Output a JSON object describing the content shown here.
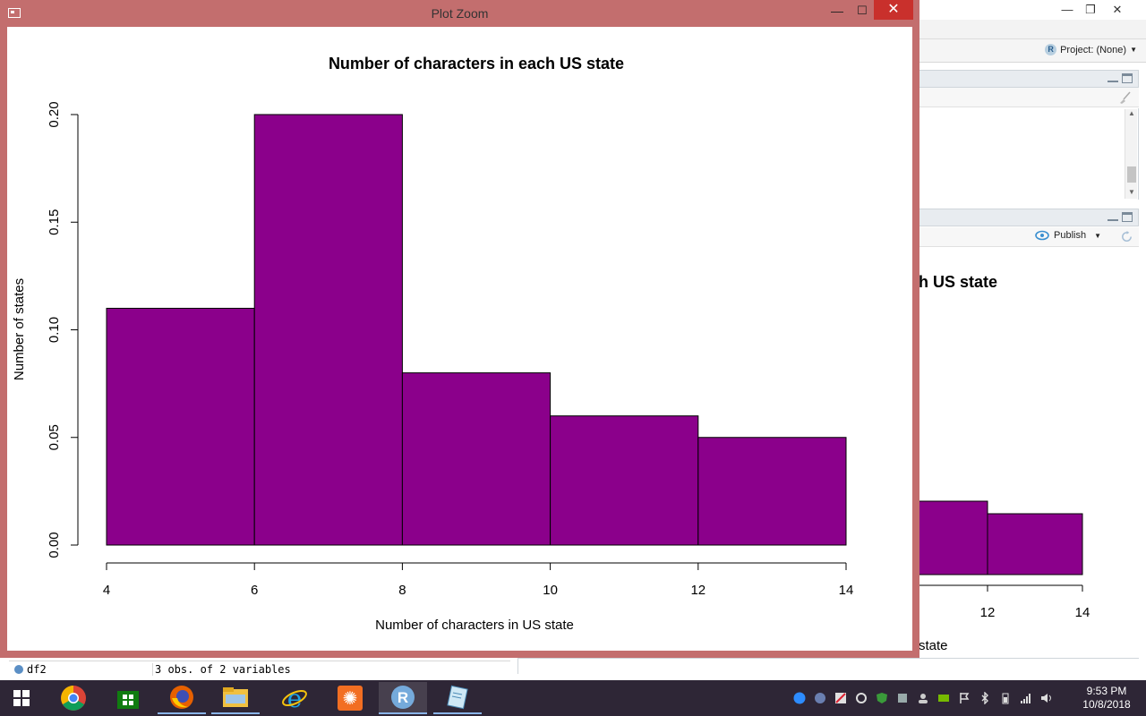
{
  "rstudio": {
    "project_label": "Project: (None)",
    "publish_label": "Publish",
    "bg_plot_title_fragment": "h US state",
    "bg_plot_xlabel_fragment": "state",
    "bg_tick_12": "12",
    "bg_tick_14": "14",
    "env_row": {
      "name": "df2",
      "value": "3 obs. of 2 variables"
    }
  },
  "plot_zoom": {
    "window_title": "Plot Zoom",
    "min_glyph": "—",
    "max_glyph": "☐",
    "close_glyph": "✕"
  },
  "chart_data": {
    "type": "bar",
    "title": "Number of characters in each US state",
    "xlabel": "Number of characters in US state",
    "ylabel": "Number of states",
    "bins": [
      {
        "x0": 4,
        "x1": 6,
        "value": 0.11
      },
      {
        "x0": 6,
        "x1": 8,
        "value": 0.2
      },
      {
        "x0": 8,
        "x1": 10,
        "value": 0.08
      },
      {
        "x0": 10,
        "x1": 12,
        "value": 0.06
      },
      {
        "x0": 12,
        "x1": 14,
        "value": 0.05
      }
    ],
    "xlim": [
      4,
      14
    ],
    "ylim": [
      0,
      0.2
    ],
    "x_ticks": [
      "4",
      "6",
      "8",
      "10",
      "12",
      "14"
    ],
    "y_ticks": [
      "0.00",
      "0.05",
      "0.10",
      "0.15",
      "0.20"
    ],
    "bar_color": "#8b008b",
    "grid": false
  },
  "taskbar": {
    "apps": [
      "chrome-icon",
      "store-icon",
      "firefox-icon",
      "file-explorer-icon",
      "internet-explorer-icon",
      "app-orange-icon",
      "r-icon",
      "notepad-icon"
    ],
    "clock_time": "9:53 PM",
    "clock_date": "10/8/2018"
  }
}
